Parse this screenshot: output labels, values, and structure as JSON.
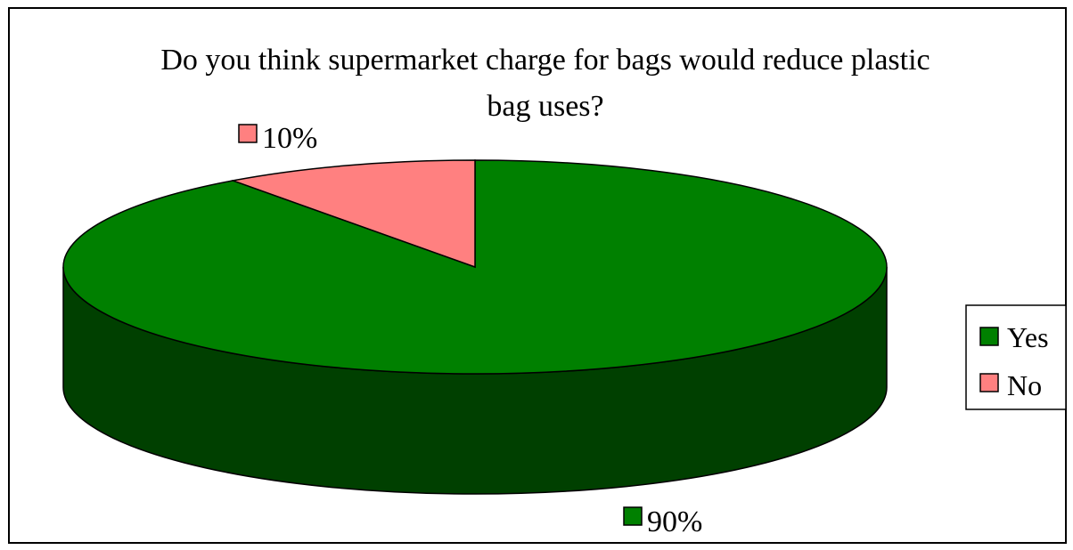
{
  "chart_data": {
    "type": "pie",
    "title_lines": [
      "Do you think supermarket charge for bags would reduce plastic",
      "bag uses?"
    ],
    "slices": [
      {
        "name": "Yes",
        "value": 90,
        "label": "90%",
        "color": "#008000",
        "side_color": "#004000"
      },
      {
        "name": "No",
        "value": 10,
        "label": "10%",
        "color": "#FF8080",
        "side_color": "#803f3f"
      }
    ],
    "legend": {
      "position": "right",
      "entries": [
        "Yes",
        "No"
      ]
    },
    "three_d": true
  }
}
